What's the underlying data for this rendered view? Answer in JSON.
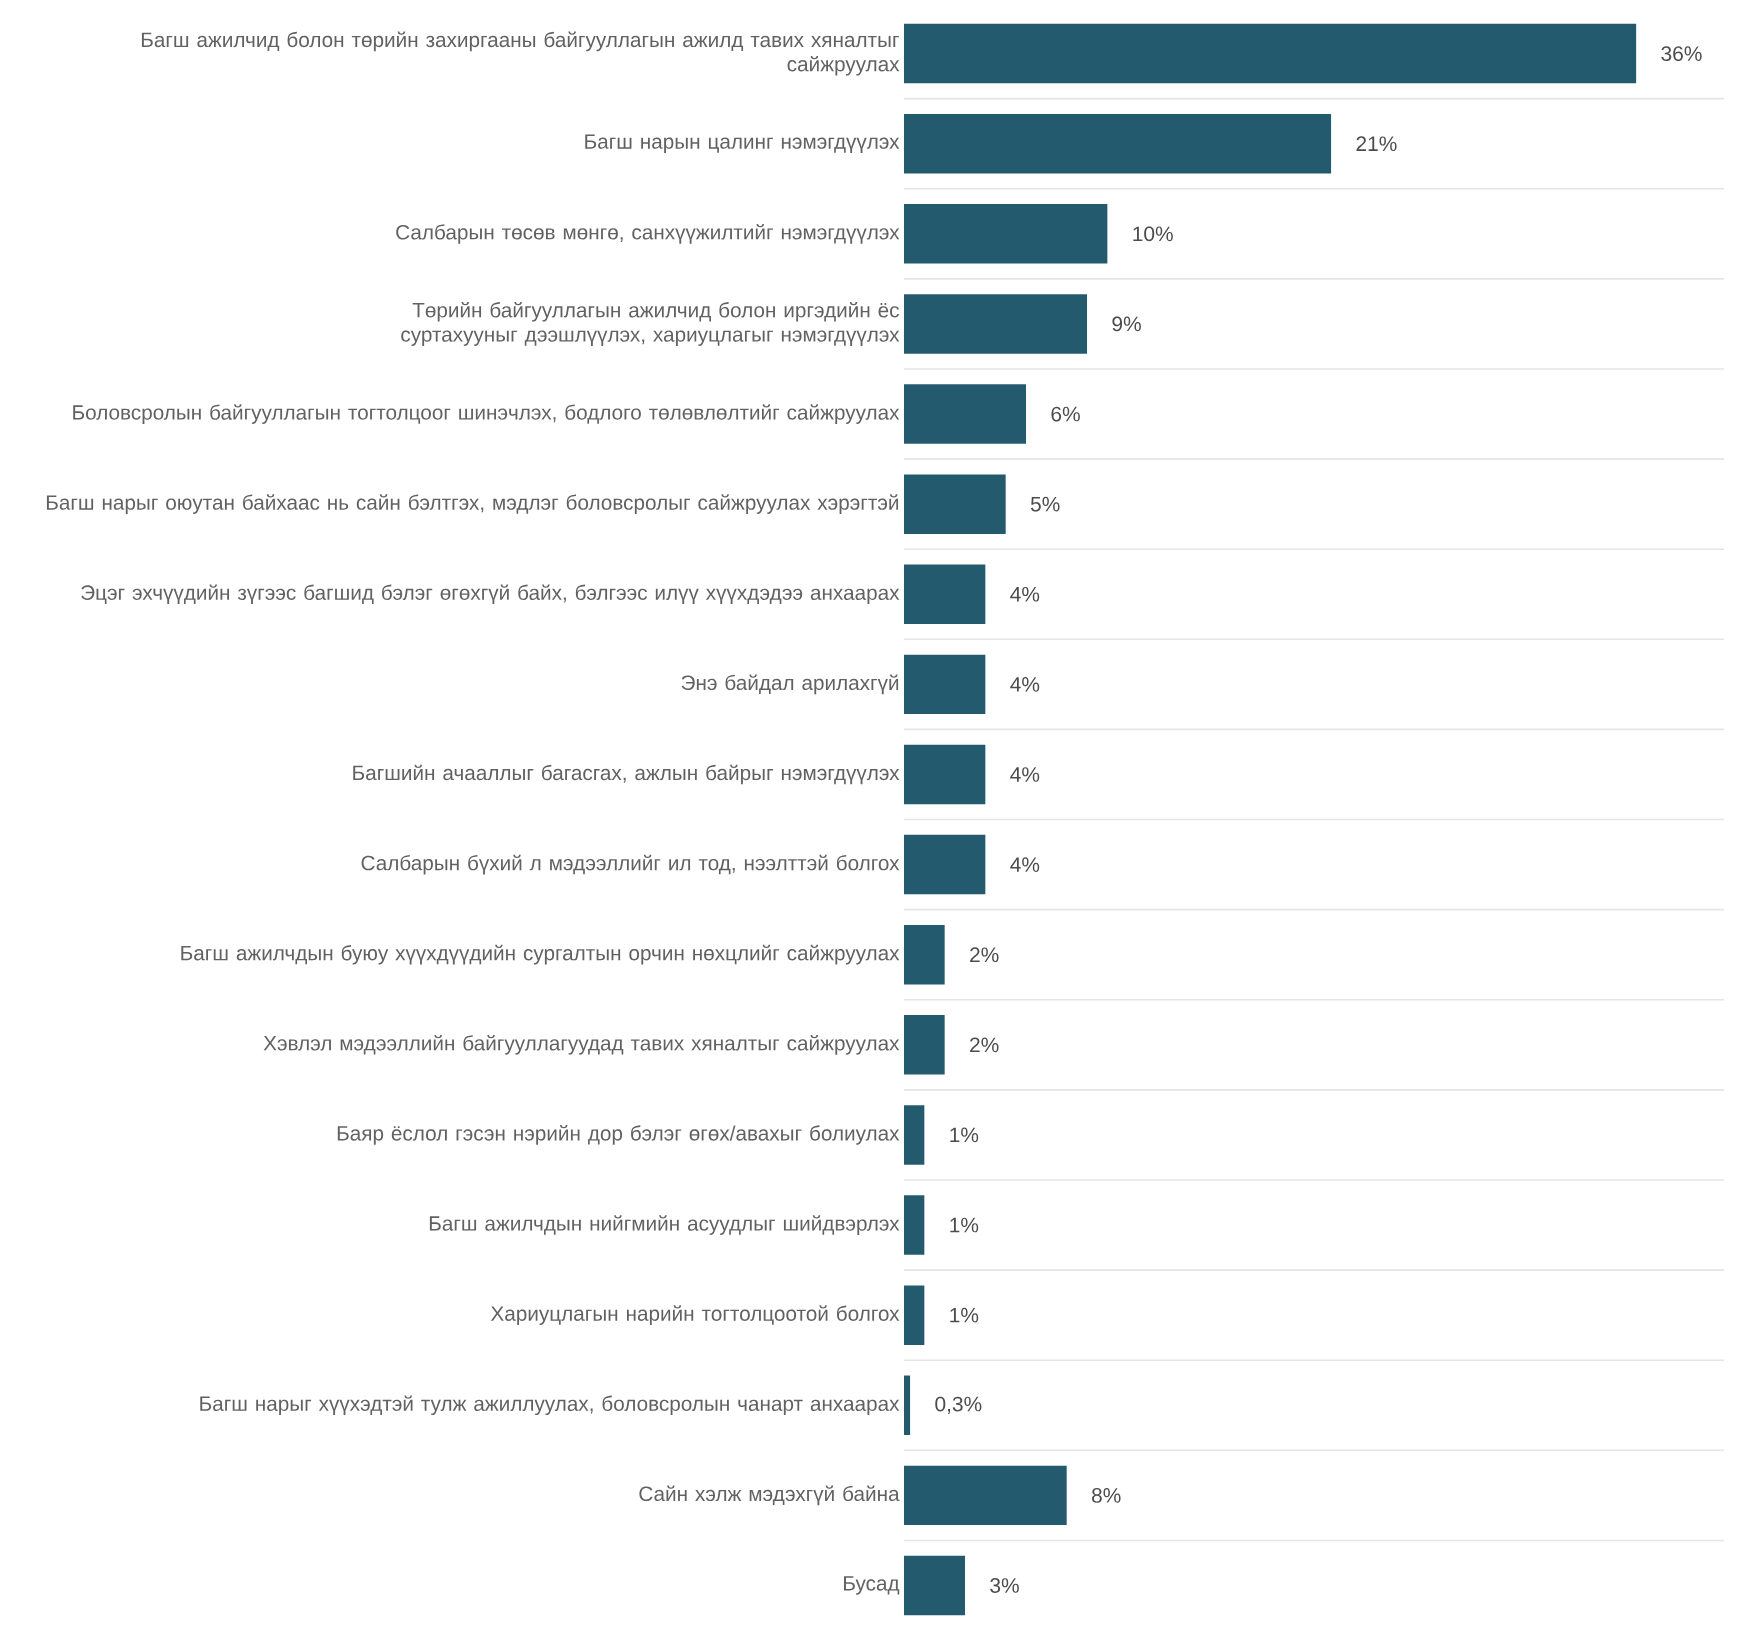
{
  "chart_data": {
    "type": "bar",
    "orientation": "horizontal",
    "color": "#245a6d",
    "grid": "y",
    "tick_labels": "y",
    "categories": [
      "Багш ажилчид болон төрийн захиргааны байгууллагын ажилд тавих хяналтыг сайжруулах",
      "Багш нарын цалинг нэмэгдүүлэх",
      "Салбарын төсөв мөнгө, санхүүжилтийг нэмэгдүүлэх",
      "Төрийн байгууллагын ажилчид болон иргэдийн ёс суртахууныг дээшлүүлэх, хариуцлагыг нэмэгдүүлэх",
      "Боловсролын байгууллагын тогтолцоог шинэчлэх, бодлого төлөвлөлтийг сайжруулах",
      "Багш нарыг оюутан байхаас нь сайн бэлтгэх, мэдлэг боловсролыг сайжруулах хэрэгтэй",
      "Эцэг эхчүүдийн зүгээс багшид бэлэг өгөхгүй байх, бэлгээс илүү хүүхдэдээ анхаарах",
      "Энэ байдал арилахгүй",
      "Багшийн ачааллыг багасгах, ажлын байрыг нэмэгдүүлэх",
      "Салбарын бүхий л мэдээллийг ил тод, нээлттэй болгох",
      "Багш ажилчдын буюу хүүхдүүдийн сургалтын орчин нөхцлийг сайжруулах",
      "Хэвлэл мэдээллийн байгууллагуудад тавих хяналтыг сайжруулах",
      "Баяр ёслол гэсэн нэрийн дор бэлэг өгөх/авахыг болиулах",
      "Багш ажилчдын нийгмийн асуудлыг шийдвэрлэх",
      "Хариуцлагын нарийн тогтолцоотой болгох",
      "Багш нарыг хүүхэдтэй тулж ажиллуулах, боловсролын чанарт анхаарах",
      "Сайн хэлж мэдэхгүй байна",
      "Бусад"
    ],
    "values": [
      36,
      21,
      10,
      9,
      6,
      5,
      4,
      4,
      4,
      4,
      2,
      2,
      1,
      1,
      1,
      0.3,
      8,
      3
    ],
    "value_labels": [
      "36%",
      "21%",
      "10%",
      "9%",
      "6%",
      "5%",
      "4%",
      "4%",
      "4%",
      "4%",
      "2%",
      "2%",
      "1%",
      "1%",
      "1%",
      "0,3%",
      "8%",
      "3%"
    ]
  }
}
